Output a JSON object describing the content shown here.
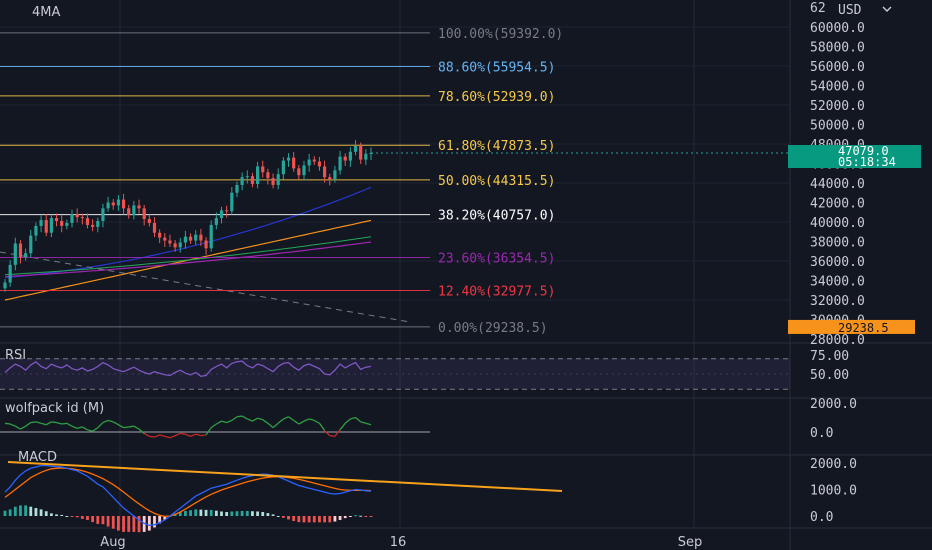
{
  "chart_data": {
    "type": "candlestick",
    "symbol_label": "4MA",
    "currency": "USD",
    "price_axis_ticks": [
      "60000.0",
      "58000.0",
      "56000.0",
      "54000.0",
      "52000.0",
      "50000.0",
      "48000.0",
      "46000.0",
      "44000.0",
      "42000.0",
      "40000.0",
      "38000.0",
      "36000.0",
      "34000.0",
      "32000.0",
      "30000.0",
      "28000.0"
    ],
    "price_axis_top_partial": "62",
    "ylim": [
      27000,
      62500
    ],
    "current_price": "47079.0",
    "countdown": "05:18:34",
    "low_badge": "29238.5",
    "time_ticks": [
      "Aug",
      "16",
      "Sep"
    ],
    "fib_levels": [
      {
        "label": "100.00%(59392.0)",
        "price": 59392.0,
        "color": "#787b86"
      },
      {
        "label": "88.60%(55954.5)",
        "price": 55954.5,
        "color": "#64b5f6"
      },
      {
        "label": "78.60%(52939.0)",
        "price": 52939.0,
        "color": "#f7c948"
      },
      {
        "label": "61.80%(47873.5)",
        "price": 47873.5,
        "color": "#f7c948"
      },
      {
        "label": "50.00%(44315.5)",
        "price": 44315.5,
        "color": "#f7c948"
      },
      {
        "label": "38.20%(40757.0)",
        "price": 40757.0,
        "color": "#ffffff"
      },
      {
        "label": "23.60%(36354.5)",
        "price": 36354.5,
        "color": "#9c27b0"
      },
      {
        "label": "12.40%(32977.5)",
        "price": 32977.5,
        "color": "#f23645"
      },
      {
        "label": "0.00%(29238.5)",
        "price": 29238.5,
        "color": "#787b86"
      }
    ],
    "candles_close": [
      33800,
      35600,
      37800,
      36400,
      36800,
      38600,
      39600,
      40200,
      38900,
      40400,
      40100,
      39600,
      39900,
      40800,
      40500,
      40400,
      39700,
      39500,
      40100,
      41400,
      42000,
      41700,
      42300,
      41400,
      40700,
      41700,
      41400,
      40300,
      39900,
      38900,
      38400,
      38100,
      37800,
      37400,
      37900,
      38500,
      38100,
      38700,
      38100,
      37300,
      39700,
      40400,
      41200,
      41100,
      43000,
      43800,
      44600,
      44700,
      43900,
      45700,
      45100,
      44500,
      43800,
      44900,
      46300,
      46600,
      45500,
      44800,
      45800,
      46400,
      46200,
      45700,
      44600,
      44400,
      45300,
      46700,
      46300,
      47200,
      47800,
      46400,
      47000,
      47079
    ],
    "rsi": {
      "title": "RSI",
      "ticks": [
        "75.00",
        "50.00"
      ],
      "values": [
        52,
        58,
        63,
        60,
        55,
        62,
        66,
        60,
        57,
        63,
        60,
        58,
        62,
        57,
        55,
        58,
        54,
        56,
        60,
        65,
        62,
        57,
        55,
        53,
        56,
        59,
        55,
        52,
        50,
        53,
        51,
        49,
        48,
        52,
        55,
        51,
        49,
        52,
        47,
        48,
        56,
        60,
        63,
        58,
        64,
        66,
        67,
        61,
        58,
        63,
        61,
        57,
        53,
        60,
        64,
        65,
        59,
        55,
        61,
        63,
        60,
        57,
        50,
        49,
        55,
        63,
        58,
        62,
        65,
        56,
        59,
        60
      ]
    },
    "wolfpack": {
      "title": "wolfpack id (M)",
      "ticks": [
        "2000.0",
        "0.0"
      ],
      "values": [
        600,
        550,
        400,
        200,
        400,
        650,
        700,
        600,
        500,
        700,
        650,
        550,
        600,
        400,
        250,
        350,
        150,
        50,
        300,
        650,
        800,
        700,
        500,
        300,
        350,
        400,
        200,
        -100,
        -300,
        -350,
        -200,
        -300,
        -400,
        -250,
        -100,
        -150,
        -300,
        -150,
        -250,
        -200,
        300,
        550,
        750,
        650,
        800,
        1050,
        1100,
        900,
        750,
        950,
        850,
        600,
        300,
        600,
        900,
        1050,
        800,
        550,
        750,
        900,
        800,
        600,
        100,
        -250,
        -300,
        150,
        600,
        900,
        1000,
        700,
        600,
        500
      ]
    },
    "macd": {
      "title": "MACD",
      "ticks": [
        "2000.0",
        "1000.0",
        "0.0"
      ],
      "macd_line": [
        900,
        1100,
        1350,
        1550,
        1700,
        1800,
        1850,
        1900,
        1900,
        1880,
        1860,
        1850,
        1800,
        1750,
        1700,
        1600,
        1500,
        1350,
        1200,
        1100,
        900,
        700,
        500,
        300,
        150,
        0,
        -150,
        -280,
        -350,
        -330,
        -250,
        -150,
        0,
        150,
        300,
        450,
        600,
        750,
        850,
        950,
        1050,
        1100,
        1150,
        1200,
        1280,
        1350,
        1420,
        1480,
        1520,
        1560,
        1580,
        1570,
        1540,
        1480,
        1400,
        1320,
        1230,
        1150,
        1100,
        1050,
        1000,
        950,
        900,
        850,
        830,
        850,
        900,
        950,
        1000,
        980,
        950,
        940
      ],
      "signal_line": [
        700,
        850,
        1000,
        1150,
        1300,
        1450,
        1550,
        1650,
        1720,
        1780,
        1800,
        1810,
        1800,
        1780,
        1750,
        1710,
        1650,
        1580,
        1500,
        1410,
        1300,
        1180,
        1050,
        900,
        750,
        600,
        460,
        320,
        200,
        100,
        30,
        -10,
        0,
        60,
        150,
        260,
        380,
        500,
        610,
        720,
        820,
        900,
        980,
        1050,
        1110,
        1170,
        1230,
        1290,
        1340,
        1390,
        1430,
        1460,
        1480,
        1480,
        1470,
        1450,
        1420,
        1380,
        1340,
        1290,
        1240,
        1190,
        1140,
        1090,
        1040,
        1000,
        980,
        970,
        970,
        970,
        965,
        960
      ],
      "histogram": [
        200,
        250,
        350,
        400,
        400,
        350,
        300,
        250,
        180,
        100,
        60,
        40,
        0,
        -30,
        -50,
        -110,
        -150,
        -230,
        -300,
        -310,
        -400,
        -480,
        -550,
        -600,
        -600,
        -600,
        -610,
        -600,
        -550,
        -430,
        -280,
        -140,
        0,
        90,
        150,
        190,
        220,
        250,
        240,
        230,
        230,
        200,
        170,
        150,
        170,
        180,
        190,
        190,
        180,
        170,
        150,
        110,
        60,
        0,
        -70,
        -130,
        -190,
        -230,
        -240,
        -240,
        -240,
        -240,
        -240,
        -240,
        -210,
        -150,
        -80,
        -20,
        30,
        10,
        -15,
        -20
      ]
    }
  }
}
